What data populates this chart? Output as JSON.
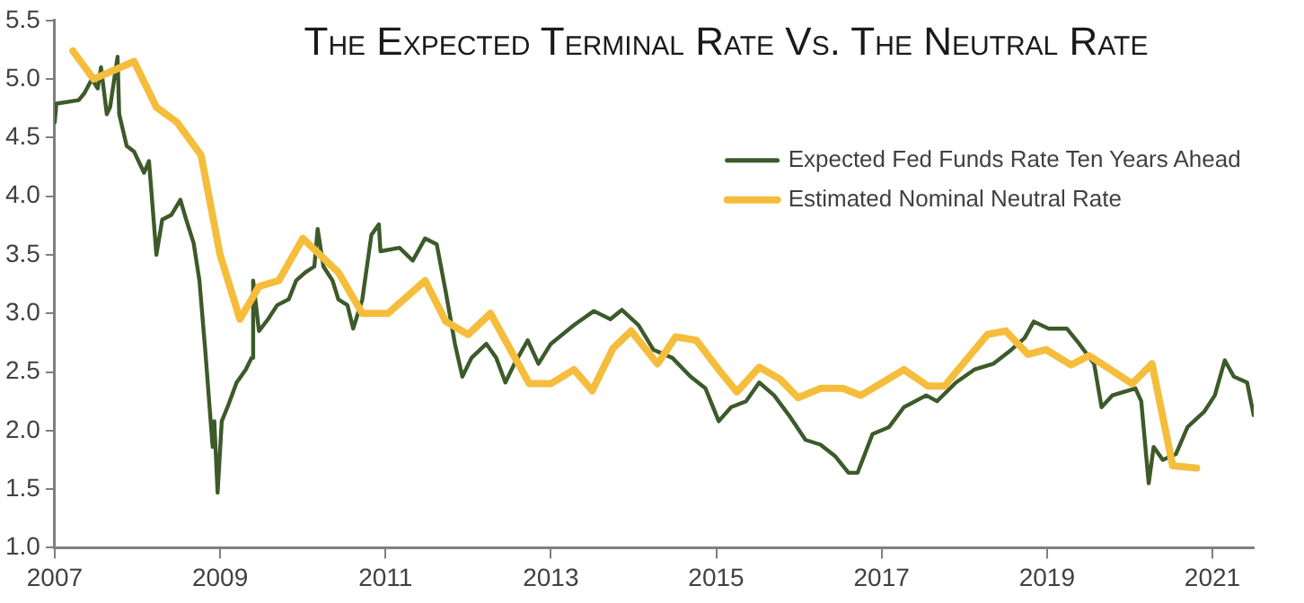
{
  "chart_data": {
    "type": "line",
    "title": "The Expected Terminal Rate Vs. The Neutral Rate",
    "xlim": [
      2007,
      2021.5
    ],
    "xticks": [
      2007,
      2009,
      2011,
      2013,
      2015,
      2017,
      2019,
      2021
    ],
    "ylim": [
      1.0,
      5.5
    ],
    "yticks": [
      {
        "value": 1.0,
        "label": "1.0"
      },
      {
        "value": 1.5,
        "label": "1.5"
      },
      {
        "value": 2.0,
        "label": "2.0"
      },
      {
        "value": 2.5,
        "label": "2.5"
      },
      {
        "value": 3.0,
        "label": "3.0"
      },
      {
        "value": 3.5,
        "label": "3.5"
      },
      {
        "value": 4.0,
        "label": "4.0"
      },
      {
        "value": 4.5,
        "label": "4.5"
      },
      {
        "value": 5.0,
        "label": "5.0"
      },
      {
        "value": 5.5,
        "label": "5.5"
      }
    ],
    "grid": false,
    "legend": "top right",
    "marker": "none",
    "line_style": "solid",
    "series": [
      {
        "name": "Expected Fed Funds Rate Ten Years Ahead",
        "color": "#3d5a2a",
        "x": [
          2007.0,
          2007.02,
          2007.29,
          2007.36,
          2007.45,
          2007.52,
          2007.56,
          2007.63,
          2007.67,
          2007.76,
          2007.78,
          2007.87,
          2007.96,
          2008.08,
          2008.14,
          2008.23,
          2008.3,
          2008.41,
          2008.52,
          2008.59,
          2008.68,
          2008.75,
          2008.82,
          2008.91,
          2008.93,
          2008.97,
          2009.02,
          2009.09,
          2009.2,
          2009.31,
          2009.38,
          2009.4,
          2009.47,
          2009.58,
          2009.69,
          2009.83,
          2009.92,
          2010.03,
          2010.14,
          2010.18,
          2010.25,
          2010.36,
          2010.43,
          2010.54,
          2010.61,
          2010.72,
          2010.83,
          2010.92,
          2010.94,
          2011.17,
          2011.33,
          2011.48,
          2011.62,
          2011.73,
          2011.84,
          2011.93,
          2012.04,
          2012.22,
          2012.34,
          2012.45,
          2012.56,
          2012.72,
          2012.85,
          2013.0,
          2013.28,
          2013.52,
          2013.72,
          2013.86,
          2014.06,
          2014.24,
          2014.47,
          2014.69,
          2014.87,
          2015.03,
          2015.18,
          2015.36,
          2015.52,
          2015.7,
          2015.88,
          2016.08,
          2016.26,
          2016.44,
          2016.6,
          2016.71,
          2016.89,
          2017.09,
          2017.27,
          2017.54,
          2017.67,
          2017.9,
          2018.12,
          2018.35,
          2018.57,
          2018.73,
          2018.84,
          2019.02,
          2019.24,
          2019.39,
          2019.57,
          2019.66,
          2019.79,
          2020.07,
          2020.14,
          2020.23,
          2020.29,
          2020.4,
          2020.56,
          2020.7,
          2020.9,
          2021.03,
          2021.15,
          2021.26,
          2021.42,
          2021.5
        ],
        "values": [
          4.63,
          4.79,
          4.82,
          4.88,
          5.0,
          4.92,
          5.1,
          4.7,
          4.76,
          5.19,
          4.7,
          4.43,
          4.38,
          4.2,
          4.3,
          3.5,
          3.8,
          3.84,
          3.97,
          3.8,
          3.6,
          3.28,
          2.69,
          1.86,
          2.08,
          1.47,
          2.08,
          2.2,
          2.41,
          2.52,
          2.62,
          3.28,
          2.85,
          2.95,
          3.07,
          3.12,
          3.28,
          3.35,
          3.4,
          3.72,
          3.4,
          3.28,
          3.12,
          3.07,
          2.87,
          3.12,
          3.67,
          3.76,
          3.53,
          3.56,
          3.45,
          3.64,
          3.59,
          3.18,
          2.74,
          2.46,
          2.62,
          2.74,
          2.62,
          2.41,
          2.57,
          2.77,
          2.57,
          2.74,
          2.9,
          3.02,
          2.95,
          3.03,
          2.9,
          2.69,
          2.62,
          2.46,
          2.36,
          2.08,
          2.2,
          2.25,
          2.41,
          2.3,
          2.13,
          1.92,
          1.88,
          1.78,
          1.64,
          1.64,
          1.97,
          2.03,
          2.2,
          2.3,
          2.25,
          2.41,
          2.52,
          2.57,
          2.69,
          2.79,
          2.93,
          2.87,
          2.87,
          2.74,
          2.57,
          2.2,
          2.3,
          2.36,
          2.25,
          1.55,
          1.86,
          1.75,
          1.8,
          2.03,
          2.16,
          2.3,
          2.6,
          2.46,
          2.41,
          2.13
        ]
      },
      {
        "name": "Estimated Nominal Neutral Rate",
        "color": "#f5bd3c",
        "x": [
          2007.22,
          2007.47,
          2007.96,
          2008.23,
          2008.48,
          2008.77,
          2009.0,
          2009.24,
          2009.47,
          2009.71,
          2010.0,
          2010.43,
          2010.72,
          2011.03,
          2011.48,
          2011.73,
          2012.0,
          2012.27,
          2012.52,
          2012.74,
          2013.0,
          2013.28,
          2013.5,
          2013.75,
          2013.97,
          2014.29,
          2014.51,
          2014.76,
          2015.03,
          2015.25,
          2015.52,
          2015.77,
          2015.99,
          2016.26,
          2016.53,
          2016.75,
          2017.27,
          2017.56,
          2017.76,
          2018.28,
          2018.5,
          2018.77,
          2018.99,
          2019.29,
          2019.51,
          2020.03,
          2020.27,
          2020.52,
          2020.81
        ],
        "values": [
          5.24,
          5.0,
          5.15,
          4.76,
          4.63,
          4.35,
          3.5,
          2.95,
          3.23,
          3.28,
          3.64,
          3.35,
          3.0,
          3.0,
          3.28,
          2.93,
          2.82,
          3.0,
          2.68,
          2.4,
          2.4,
          2.52,
          2.34,
          2.7,
          2.85,
          2.57,
          2.8,
          2.77,
          2.52,
          2.33,
          2.54,
          2.44,
          2.28,
          2.36,
          2.36,
          2.3,
          2.52,
          2.38,
          2.38,
          2.82,
          2.85,
          2.65,
          2.69,
          2.56,
          2.64,
          2.4,
          2.57,
          1.7,
          1.68
        ]
      }
    ]
  }
}
